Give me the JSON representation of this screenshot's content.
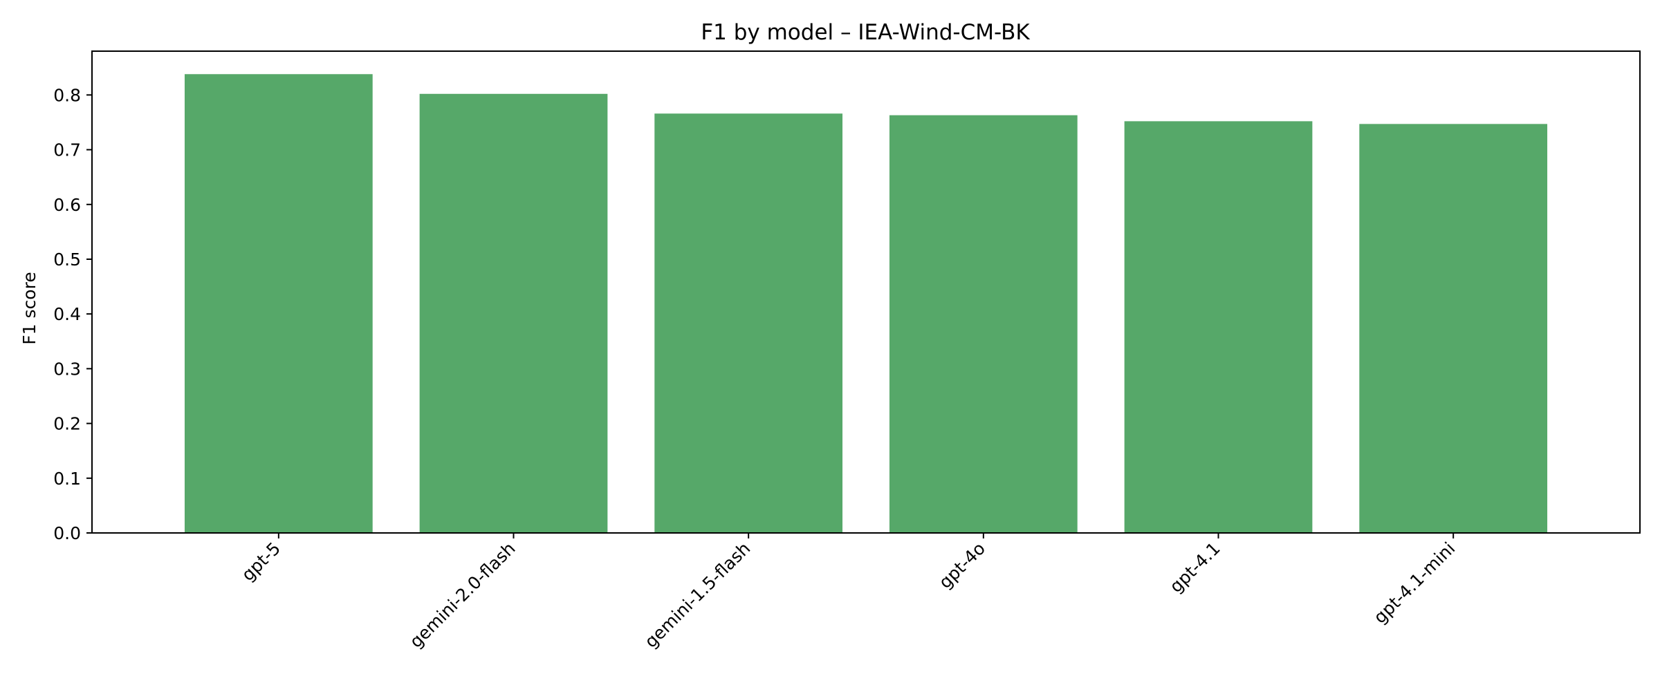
{
  "chart_data": {
    "type": "bar",
    "title": "F1 by model – IEA-Wind-CM-BK",
    "xlabel": "",
    "ylabel": "F1 score",
    "categories": [
      "gpt-5",
      "gemini-2.0-flash",
      "gemini-1.5-flash",
      "gpt-4o",
      "gpt-4.1",
      "gpt-4.1-mini"
    ],
    "values": [
      0.838,
      0.802,
      0.766,
      0.763,
      0.752,
      0.747
    ],
    "ylim": [
      0,
      0.88
    ],
    "yticks": [
      0.0,
      0.1,
      0.2,
      0.3,
      0.4,
      0.5,
      0.6,
      0.7,
      0.8
    ],
    "ytick_labels": [
      "0.0",
      "0.1",
      "0.2",
      "0.3",
      "0.4",
      "0.5",
      "0.6",
      "0.7",
      "0.8"
    ],
    "bar_color": "#56a869",
    "grid": false,
    "legend": "none"
  }
}
